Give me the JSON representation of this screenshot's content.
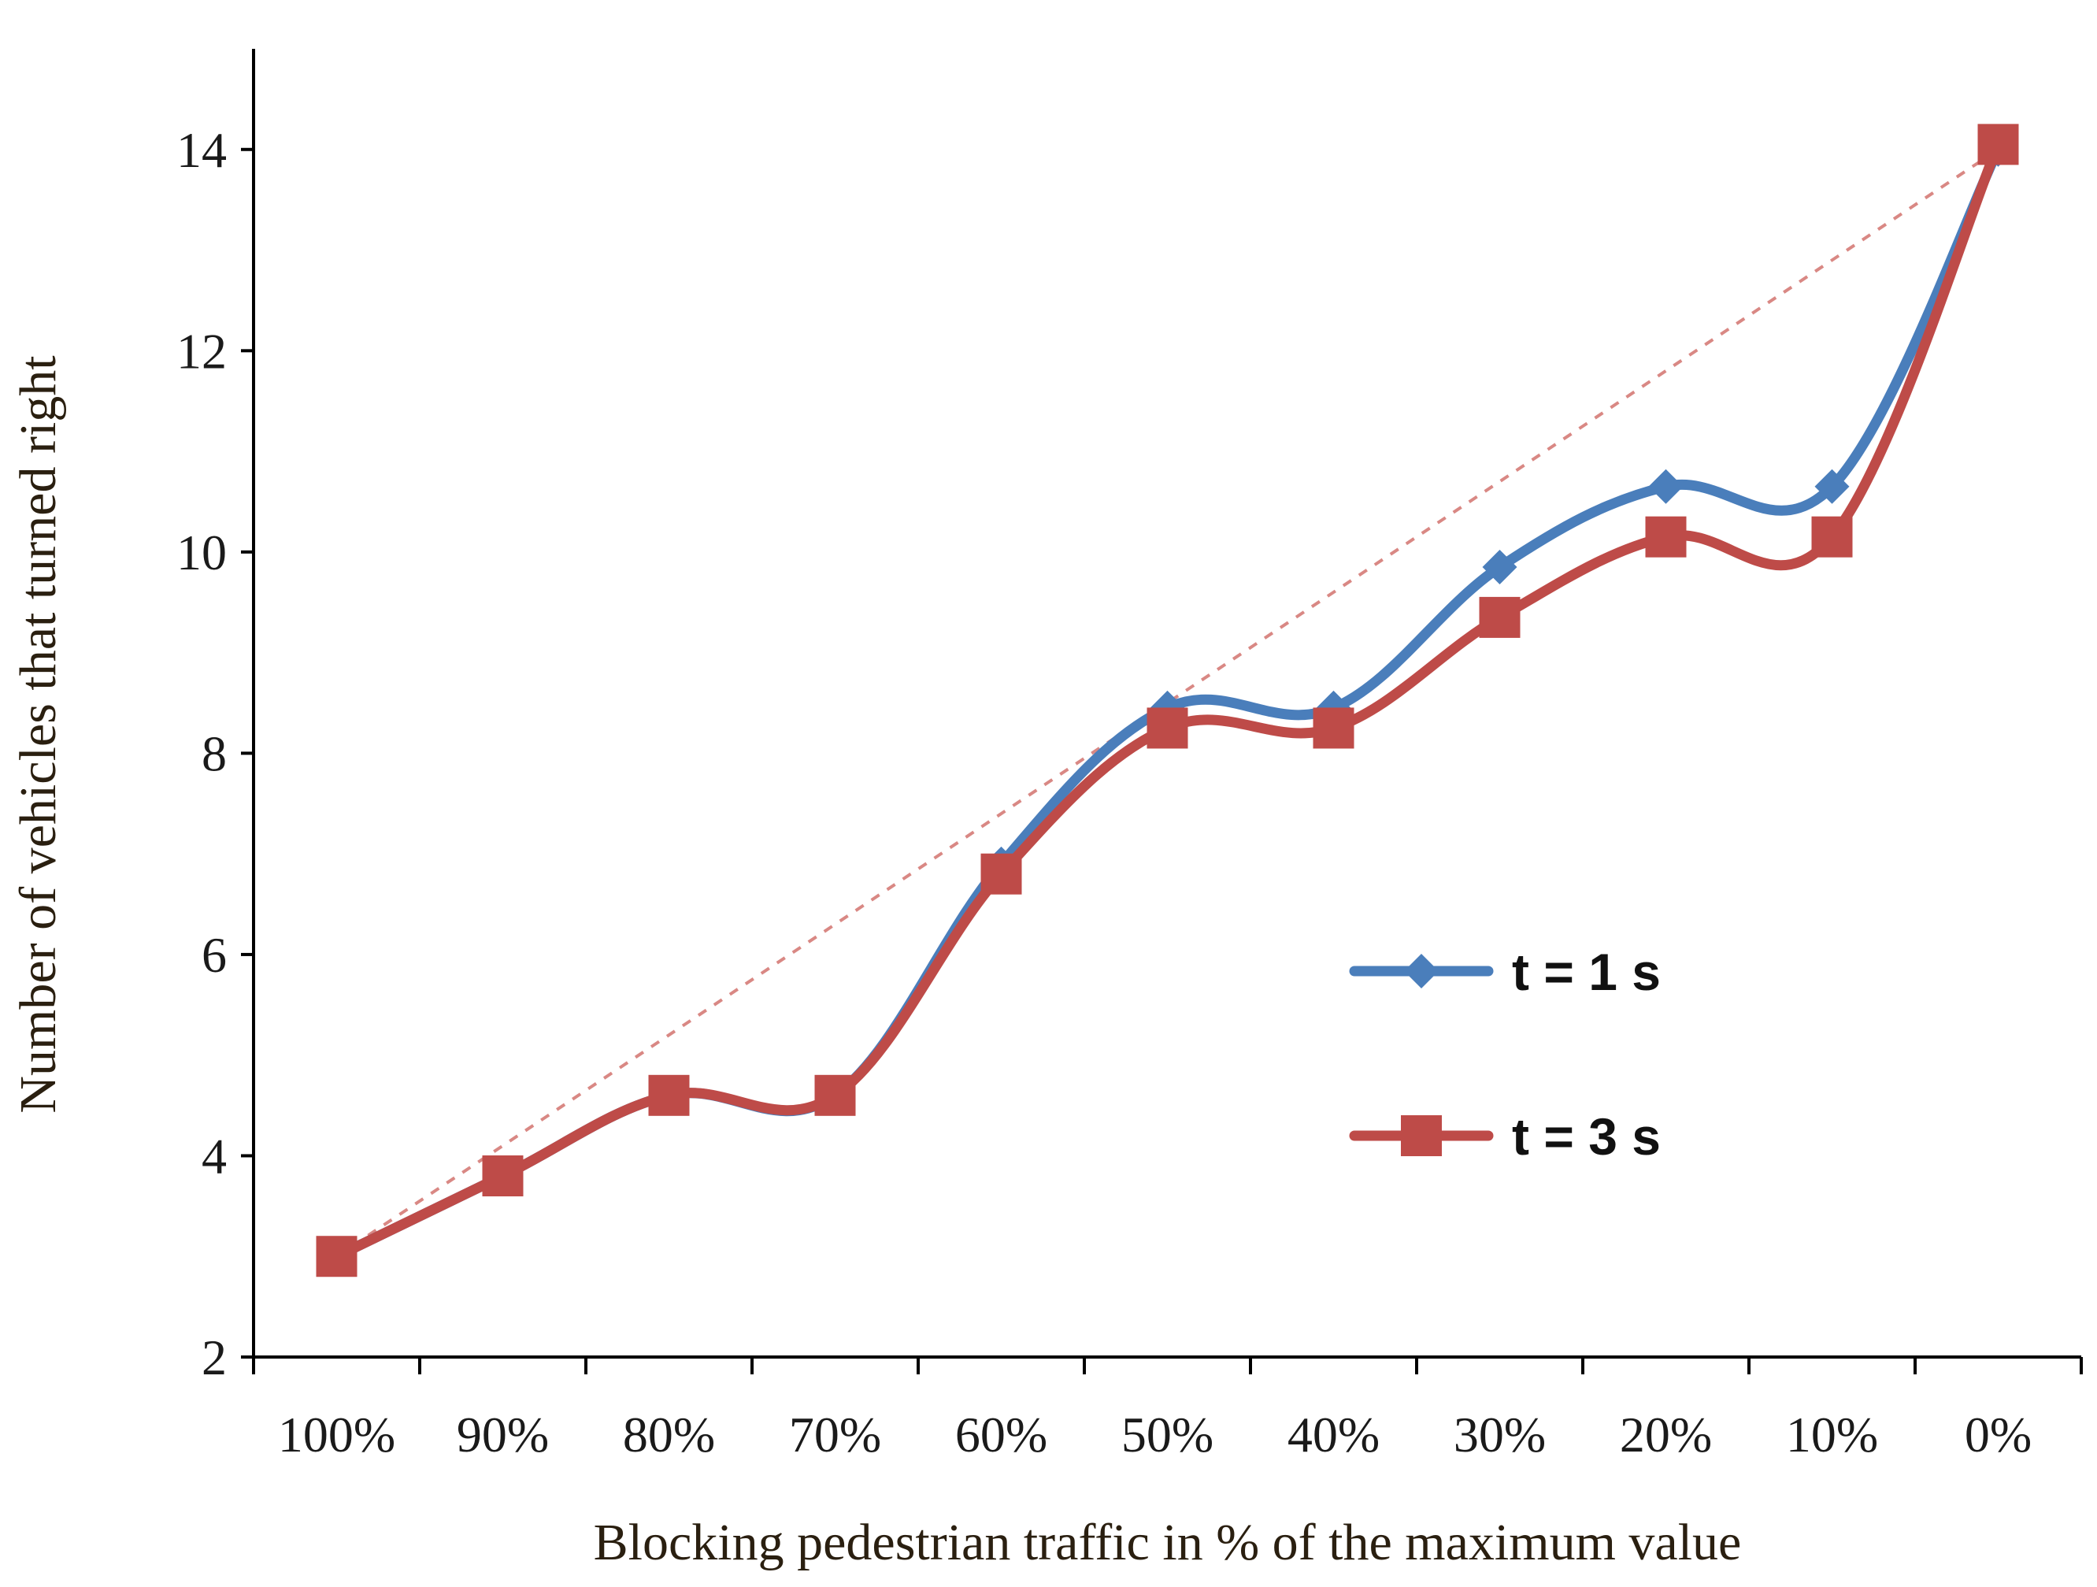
{
  "chart_data": {
    "type": "line",
    "title": "",
    "xlabel": "Blocking pedestrian traffic in % of the maximum value",
    "ylabel": "Number of vehicles that turned right",
    "categories": [
      "100%",
      "90%",
      "80%",
      "70%",
      "60%",
      "50%",
      "40%",
      "30%",
      "20%",
      "10%",
      "0%"
    ],
    "ylim": [
      2,
      15
    ],
    "yticks": [
      2,
      4,
      6,
      8,
      10,
      12,
      14
    ],
    "grid": false,
    "legend_position": "center-right",
    "series": [
      {
        "name": "t = 1 s",
        "color": "#4a7ebb",
        "marker": "diamond",
        "values": [
          3.0,
          3.8,
          4.6,
          4.6,
          6.9,
          8.45,
          8.45,
          9.85,
          10.65,
          10.65,
          14.0
        ]
      },
      {
        "name": "t = 3 s",
        "color": "#be4b48",
        "marker": "square",
        "values": [
          3.0,
          3.8,
          4.6,
          4.6,
          6.8,
          8.25,
          8.25,
          9.35,
          10.15,
          10.15,
          14.05
        ]
      }
    ],
    "trendline": {
      "color": "#d98884",
      "style": "dashed",
      "from": {
        "category": "100%",
        "value": 3.0
      },
      "to": {
        "category": "0%",
        "value": 14.0
      }
    }
  }
}
